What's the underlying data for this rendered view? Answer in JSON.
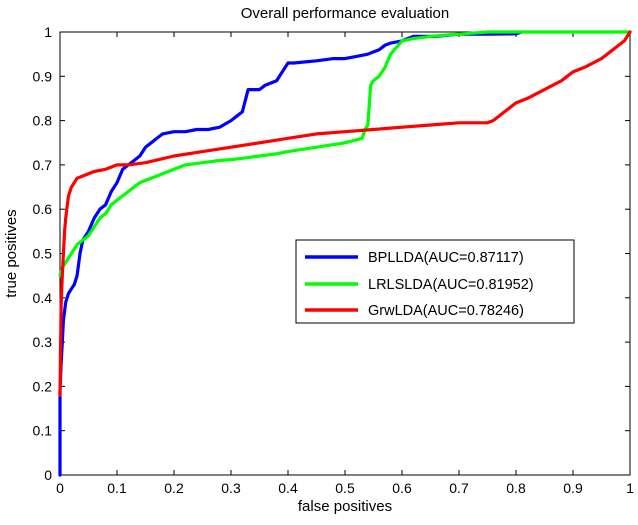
{
  "chart_data": {
    "type": "line",
    "title": "Overall performance evaluation",
    "xlabel": "false positives",
    "ylabel": "true positives",
    "xlim": [
      0,
      1
    ],
    "ylim": [
      0,
      1
    ],
    "x_ticks": [
      "0",
      "0.1",
      "0.2",
      "0.3",
      "0.4",
      "0.5",
      "0.6",
      "0.7",
      "0.8",
      "0.9",
      "1"
    ],
    "y_ticks": [
      "0",
      "0.1",
      "0.2",
      "0.3",
      "0.4",
      "0.5",
      "0.6",
      "0.7",
      "0.8",
      "0.9",
      "1"
    ],
    "grid": false,
    "legend_position": "center-right",
    "series": [
      {
        "name": "BPLLDA(AUC=0.87117)",
        "color": "#0000ff",
        "x": [
          0,
          0,
          0.002,
          0.004,
          0.006,
          0.008,
          0.01,
          0.015,
          0.02,
          0.025,
          0.03,
          0.035,
          0.04,
          0.05,
          0.06,
          0.07,
          0.08,
          0.09,
          0.1,
          0.11,
          0.12,
          0.13,
          0.14,
          0.15,
          0.16,
          0.17,
          0.18,
          0.2,
          0.22,
          0.24,
          0.26,
          0.28,
          0.3,
          0.31,
          0.32,
          0.33,
          0.34,
          0.35,
          0.36,
          0.38,
          0.4,
          0.41,
          0.45,
          0.48,
          0.5,
          0.52,
          0.54,
          0.55,
          0.56,
          0.57,
          0.58,
          0.6,
          0.62,
          0.66,
          0.7,
          0.75,
          0.8,
          0.81
        ],
        "y": [
          0,
          0.19,
          0.25,
          0.3,
          0.35,
          0.37,
          0.39,
          0.41,
          0.42,
          0.43,
          0.45,
          0.5,
          0.53,
          0.55,
          0.58,
          0.6,
          0.61,
          0.64,
          0.66,
          0.69,
          0.7,
          0.71,
          0.72,
          0.74,
          0.75,
          0.76,
          0.77,
          0.775,
          0.775,
          0.78,
          0.78,
          0.785,
          0.8,
          0.81,
          0.82,
          0.87,
          0.87,
          0.87,
          0.88,
          0.89,
          0.93,
          0.93,
          0.935,
          0.94,
          0.94,
          0.945,
          0.95,
          0.955,
          0.96,
          0.97,
          0.975,
          0.98,
          0.99,
          0.99,
          0.995,
          0.995,
          0.996,
          1.0
        ]
      },
      {
        "name": "LRLSLDA(AUC=0.81952)",
        "color": "#00ff00",
        "x": [
          0,
          0.005,
          0.01,
          0.02,
          0.03,
          0.04,
          0.05,
          0.06,
          0.07,
          0.08,
          0.09,
          0.1,
          0.11,
          0.12,
          0.14,
          0.16,
          0.18,
          0.2,
          0.22,
          0.25,
          0.28,
          0.3,
          0.32,
          0.35,
          0.38,
          0.4,
          0.45,
          0.5,
          0.53,
          0.535,
          0.54,
          0.545,
          0.55,
          0.56,
          0.57,
          0.58,
          0.6,
          0.62,
          0.65,
          0.7,
          0.75,
          0.8,
          0.9,
          1.0
        ],
        "y": [
          0.45,
          0.47,
          0.48,
          0.5,
          0.52,
          0.53,
          0.54,
          0.56,
          0.58,
          0.59,
          0.61,
          0.62,
          0.63,
          0.64,
          0.66,
          0.67,
          0.68,
          0.69,
          0.7,
          0.705,
          0.71,
          0.712,
          0.715,
          0.72,
          0.725,
          0.73,
          0.74,
          0.75,
          0.76,
          0.78,
          0.79,
          0.88,
          0.89,
          0.9,
          0.92,
          0.95,
          0.98,
          0.985,
          0.99,
          0.995,
          1.0,
          1.0,
          1.0,
          1.0
        ]
      },
      {
        "name": "GrwLDA(AUC=0.78246)",
        "color": "#ff0000",
        "x": [
          0,
          0.002,
          0.004,
          0.006,
          0.008,
          0.01,
          0.012,
          0.015,
          0.02,
          0.025,
          0.03,
          0.04,
          0.05,
          0.06,
          0.08,
          0.1,
          0.12,
          0.15,
          0.2,
          0.25,
          0.3,
          0.35,
          0.4,
          0.45,
          0.5,
          0.55,
          0.6,
          0.65,
          0.7,
          0.75,
          0.76,
          0.78,
          0.8,
          0.82,
          0.85,
          0.88,
          0.9,
          0.92,
          0.95,
          0.97,
          0.99,
          1.0
        ],
        "y": [
          0.18,
          0.38,
          0.45,
          0.5,
          0.55,
          0.58,
          0.6,
          0.63,
          0.65,
          0.66,
          0.67,
          0.675,
          0.68,
          0.685,
          0.69,
          0.7,
          0.7,
          0.705,
          0.72,
          0.73,
          0.74,
          0.75,
          0.76,
          0.77,
          0.775,
          0.78,
          0.785,
          0.79,
          0.795,
          0.795,
          0.8,
          0.82,
          0.84,
          0.85,
          0.87,
          0.89,
          0.91,
          0.92,
          0.94,
          0.96,
          0.98,
          1.0
        ]
      }
    ]
  }
}
